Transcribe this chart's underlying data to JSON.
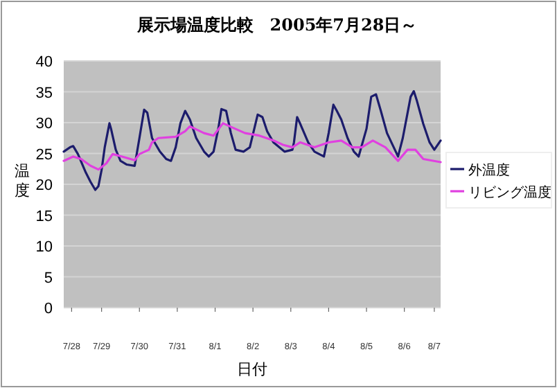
{
  "chart_data": {
    "type": "line",
    "title": "展示場温度比較　2005年7月28日～",
    "xlabel": "日付",
    "ylabel": "温度",
    "xlim": [
      "2005-07-28T12:00",
      "2005-08-07T11:00"
    ],
    "ylim": [
      0,
      40
    ],
    "yticks": [
      0,
      5,
      10,
      15,
      20,
      25,
      30,
      35,
      40
    ],
    "xticks": [
      {
        "value": "2005-07-28T17:00",
        "label": "7/28"
      },
      {
        "value": "2005-07-29T12:00",
        "label": "7/29"
      },
      {
        "value": "2005-07-30T12:00",
        "label": "7/30"
      },
      {
        "value": "2005-07-31T12:00",
        "label": "7/31"
      },
      {
        "value": "2005-08-01T12:00",
        "label": "8/1"
      },
      {
        "value": "2005-08-02T12:00",
        "label": "8/2"
      },
      {
        "value": "2005-08-03T12:00",
        "label": "8/3"
      },
      {
        "value": "2005-08-04T12:00",
        "label": "8/4"
      },
      {
        "value": "2005-08-05T12:00",
        "label": "8/5"
      },
      {
        "value": "2005-08-06T12:00",
        "label": "8/6"
      },
      {
        "value": "2005-08-07T07:00",
        "label": "8/7"
      }
    ],
    "grid": "y",
    "legend": "right",
    "series": [
      {
        "name": "外温度",
        "color": "#1c1c6c",
        "x": [
          "2005-07-28T12:00",
          "2005-07-28T16:00",
          "2005-07-28T18:00",
          "2005-07-28T21:00",
          "2005-07-29T02:00",
          "2005-07-29T05:00",
          "2005-07-29T08:00",
          "2005-07-29T10:00",
          "2005-07-29T12:00",
          "2005-07-29T14:00",
          "2005-07-29T17:00",
          "2005-07-29T18:00",
          "2005-07-29T21:00",
          "2005-07-30T00:00",
          "2005-07-30T04:00",
          "2005-07-30T09:00",
          "2005-07-30T12:00",
          "2005-07-30T15:00",
          "2005-07-30T17:00",
          "2005-07-30T20:00",
          "2005-07-31T01:00",
          "2005-07-31T05:00",
          "2005-07-31T08:00",
          "2005-07-31T11:00",
          "2005-07-31T14:00",
          "2005-07-31T17:00",
          "2005-07-31T20:00",
          "2005-08-01T00:00",
          "2005-08-01T05:00",
          "2005-08-01T08:00",
          "2005-08-01T11:00",
          "2005-08-01T14:00",
          "2005-08-01T16:00",
          "2005-08-01T19:00",
          "2005-08-01T22:00",
          "2005-08-02T01:00",
          "2005-08-02T06:00",
          "2005-08-02T10:00",
          "2005-08-02T15:00",
          "2005-08-02T18:00",
          "2005-08-02T21:00",
          "2005-08-03T01:00",
          "2005-08-03T08:00",
          "2005-08-03T13:00",
          "2005-08-03T14:00",
          "2005-08-03T16:00",
          "2005-08-03T18:00",
          "2005-08-03T23:00",
          "2005-08-04T03:00",
          "2005-08-04T09:00",
          "2005-08-04T12:00",
          "2005-08-04T15:00",
          "2005-08-04T17:00",
          "2005-08-04T20:00",
          "2005-08-05T00:00",
          "2005-08-05T04:00",
          "2005-08-05T07:00",
          "2005-08-05T12:00",
          "2005-08-05T15:00",
          "2005-08-05T18:00",
          "2005-08-05T21:00",
          "2005-08-06T01:00",
          "2005-08-06T06:00",
          "2005-08-06T08:00",
          "2005-08-06T11:00",
          "2005-08-06T16:00",
          "2005-08-06T18:00",
          "2005-08-06T20:00",
          "2005-08-07T00:00",
          "2005-08-07T04:00",
          "2005-08-07T07:00",
          "2005-08-07T11:00"
        ],
        "values": [
          25.3,
          26,
          26.2,
          24.9,
          21.9,
          20.4,
          19.1,
          19.7,
          22.3,
          26,
          29.9,
          29,
          25.6,
          23.8,
          23.2,
          23,
          27.5,
          32.1,
          31.6,
          27.5,
          25.3,
          24.1,
          23.8,
          26,
          29.9,
          31.9,
          30.5,
          27.5,
          25.3,
          24.5,
          25.3,
          29,
          32.2,
          31.9,
          28.3,
          25.6,
          25.3,
          26,
          31.3,
          30.9,
          28.6,
          26.8,
          25.3,
          25.6,
          26.8,
          30.9,
          29.8,
          26.8,
          25.3,
          24.5,
          28.3,
          32.9,
          32,
          30.5,
          27.5,
          25.3,
          24.5,
          29,
          34.2,
          34.6,
          32,
          28.3,
          25.6,
          24.5,
          27.5,
          34.2,
          35.1,
          33.5,
          29.8,
          26.8,
          25.6,
          27.1
        ]
      },
      {
        "name": "リビング温度",
        "color": "#e040e0",
        "x": [
          "2005-07-28T12:00",
          "2005-07-28T18:00",
          "2005-07-28T23:00",
          "2005-07-29T05:00",
          "2005-07-29T10:00",
          "2005-07-29T15:00",
          "2005-07-29T19:00",
          "2005-07-30T01:00",
          "2005-07-30T09:00",
          "2005-07-30T12:00",
          "2005-07-30T18:00",
          "2005-07-30T20:00",
          "2005-07-31T00:00",
          "2005-07-31T11:00",
          "2005-07-31T17:00",
          "2005-07-31T20:00",
          "2005-08-01T05:00",
          "2005-08-01T11:00",
          "2005-08-01T17:00",
          "2005-08-01T23:00",
          "2005-08-02T07:00",
          "2005-08-02T16:00",
          "2005-08-03T01:00",
          "2005-08-03T07:00",
          "2005-08-03T13:00",
          "2005-08-03T18:00",
          "2005-08-04T03:00",
          "2005-08-04T12:00",
          "2005-08-04T20:00",
          "2005-08-05T03:00",
          "2005-08-05T09:00",
          "2005-08-05T16:00",
          "2005-08-06T00:00",
          "2005-08-06T08:00",
          "2005-08-06T14:00",
          "2005-08-06T19:00",
          "2005-08-07T00:00",
          "2005-08-07T11:00"
        ],
        "values": [
          23.8,
          24.5,
          24.1,
          23,
          22.4,
          23.4,
          24.9,
          24.5,
          23.9,
          24.9,
          25.6,
          26.8,
          27.5,
          27.7,
          28.6,
          29.4,
          28.3,
          27.9,
          29.9,
          29.2,
          28.3,
          27.9,
          27.1,
          26.4,
          26,
          26.8,
          26,
          26.8,
          27.1,
          26,
          26,
          27.1,
          26,
          23.8,
          25.6,
          25.6,
          24.1,
          23.6
        ]
      }
    ]
  }
}
